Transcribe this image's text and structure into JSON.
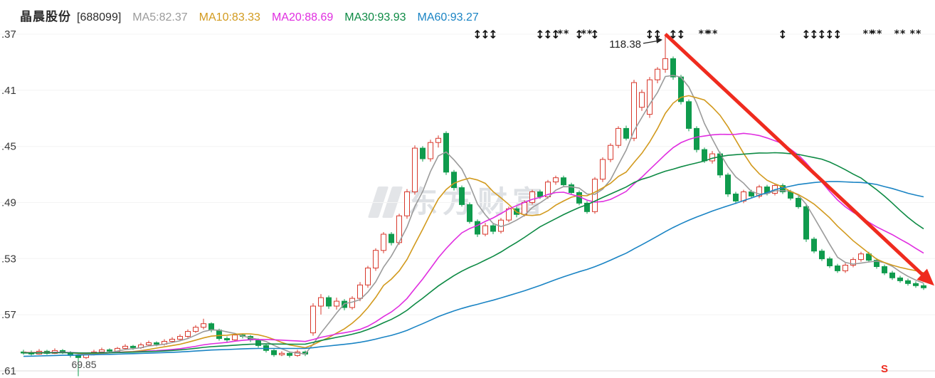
{
  "header": {
    "title": "晶晨股份",
    "code": "[688099]"
  },
  "watermark": {
    "text": "东方财富"
  },
  "chart_data": {
    "type": "candlestick",
    "title": "晶晨股份 [688099] 日K线",
    "symbol": "晶晨股份",
    "stock_code": "688099",
    "ma_lines": [
      {
        "name": "MA5",
        "period": 5,
        "value": 82.37,
        "label": "MA5:82.37",
        "color": "#9b9b9b"
      },
      {
        "name": "MA10",
        "period": 10,
        "value": 83.33,
        "label": "MA10:83.33",
        "color": "#d29a1e"
      },
      {
        "name": "MA20",
        "period": 20,
        "value": 88.69,
        "label": "MA20:88.69",
        "color": "#e02ee0"
      },
      {
        "name": "MA30",
        "period": 30,
        "value": 93.93,
        "label": "MA30:93.93",
        "color": "#0d8a44"
      },
      {
        "name": "MA60",
        "period": 60,
        "value": 93.27,
        "label": "MA60:93.27",
        "color": "#1a84c4"
      }
    ],
    "y_axis": {
      "max": 118.37,
      "min": 70.61,
      "grid": "minimal",
      "ticks": [
        {
          "label": ".37",
          "value": 118.37
        },
        {
          "label": ".41",
          "value": 110.41
        },
        {
          "label": ".45",
          "value": 102.45
        },
        {
          "label": ".49",
          "value": 94.49
        },
        {
          "label": ".53",
          "value": 86.53
        },
        {
          "label": ".57",
          "value": 78.57
        },
        {
          "label": ".61",
          "value": 70.61
        }
      ]
    },
    "colors": {
      "up": "#d8382c",
      "down": "#0f9b4d",
      "trend_arrow": "#ef2b1e",
      "annotation": "#222222"
    },
    "pre_closes": [
      71.2,
      71.3,
      71.25,
      71.4,
      71.5,
      71.45,
      71.6,
      71.7,
      71.65,
      71.8,
      71.9,
      71.85,
      72.0,
      72.1,
      72.05,
      72.2,
      72.3,
      72.25,
      72.4,
      72.5,
      72.45,
      72.6,
      72.55,
      72.7,
      72.65,
      72.8,
      72.75,
      72.9,
      72.85,
      73.0,
      72.95,
      73.05,
      73.0,
      73.1,
      73.05,
      73.15,
      73.1,
      73.2,
      73.1,
      73.0,
      73.1,
      73.2,
      73.15,
      73.05,
      73.0,
      73.1,
      73.2,
      73.25,
      73.2,
      73.1,
      73.15,
      73.2,
      73.25,
      73.3,
      73.25,
      73.2,
      73.25,
      73.3,
      73.25,
      73.2
    ],
    "candles": [
      [
        73.3,
        73.6,
        72.9,
        73.2
      ],
      [
        73.2,
        73.5,
        72.8,
        73.0
      ],
      [
        73.0,
        73.7,
        72.9,
        73.4
      ],
      [
        73.4,
        73.6,
        72.9,
        73.1
      ],
      [
        73.1,
        73.8,
        73.0,
        73.5
      ],
      [
        73.5,
        73.7,
        73.0,
        73.2
      ],
      [
        73.2,
        73.4,
        72.5,
        72.8
      ],
      [
        72.8,
        73.0,
        69.85,
        72.5
      ],
      [
        72.5,
        73.2,
        72.3,
        73.0
      ],
      [
        73.0,
        73.6,
        72.8,
        73.3
      ],
      [
        73.3,
        73.9,
        73.1,
        73.6
      ],
      [
        73.6,
        73.8,
        73.1,
        73.4
      ],
      [
        73.4,
        74.0,
        73.2,
        73.8
      ],
      [
        73.8,
        74.4,
        73.6,
        74.1
      ],
      [
        74.1,
        74.3,
        73.6,
        73.9
      ],
      [
        73.9,
        74.6,
        73.7,
        74.3
      ],
      [
        74.3,
        74.9,
        74.1,
        74.6
      ],
      [
        74.6,
        74.8,
        74.1,
        74.4
      ],
      [
        74.4,
        75.1,
        74.2,
        74.8
      ],
      [
        74.8,
        75.4,
        74.6,
        75.1
      ],
      [
        75.1,
        75.8,
        74.9,
        75.5
      ],
      [
        75.5,
        76.5,
        75.3,
        76.2
      ],
      [
        76.2,
        77.1,
        76.0,
        76.8
      ],
      [
        76.8,
        78.0,
        76.5,
        77.3
      ],
      [
        77.3,
        77.5,
        76.1,
        76.4
      ],
      [
        76.4,
        76.6,
        74.9,
        75.2
      ],
      [
        75.2,
        75.5,
        74.7,
        75.0
      ],
      [
        75.0,
        76.0,
        74.8,
        75.7
      ],
      [
        75.7,
        75.9,
        75.2,
        75.5
      ],
      [
        75.5,
        75.7,
        74.7,
        75.0
      ],
      [
        75.0,
        75.2,
        73.9,
        74.2
      ],
      [
        74.2,
        74.4,
        73.2,
        73.5
      ],
      [
        73.5,
        73.7,
        72.6,
        72.9
      ],
      [
        72.9,
        73.4,
        72.7,
        73.1
      ],
      [
        73.1,
        73.3,
        72.5,
        72.8
      ],
      [
        72.8,
        73.6,
        72.6,
        73.3
      ],
      [
        73.3,
        73.5,
        72.7,
        73.0
      ],
      [
        76.0,
        80.2,
        75.6,
        79.8
      ],
      [
        79.8,
        81.5,
        78.6,
        81.0
      ],
      [
        81.0,
        81.3,
        79.4,
        79.8
      ],
      [
        79.8,
        81.0,
        79.3,
        80.5
      ],
      [
        80.5,
        80.8,
        79.2,
        79.6
      ],
      [
        79.6,
        81.2,
        79.3,
        80.9
      ],
      [
        80.9,
        83.2,
        80.5,
        82.8
      ],
      [
        82.8,
        85.5,
        82.4,
        85.2
      ],
      [
        85.2,
        88.0,
        84.8,
        87.7
      ],
      [
        87.7,
        90.3,
        87.3,
        90.0
      ],
      [
        90.0,
        90.3,
        88.4,
        88.8
      ],
      [
        88.8,
        92.9,
        88.5,
        92.6
      ],
      [
        92.6,
        96.4,
        92.2,
        96.0
      ],
      [
        96.0,
        102.6,
        95.6,
        102.2
      ],
      [
        102.2,
        102.5,
        100.3,
        100.7
      ],
      [
        100.7,
        103.4,
        100.3,
        103.0
      ],
      [
        103.0,
        104.0,
        102.3,
        103.6
      ],
      [
        104.3,
        104.6,
        98.4,
        98.8
      ],
      [
        98.8,
        99.1,
        96.2,
        96.6
      ],
      [
        96.6,
        96.9,
        93.9,
        94.2
      ],
      [
        94.2,
        94.5,
        91.5,
        91.8
      ],
      [
        91.8,
        92.1,
        89.6,
        90.0
      ],
      [
        90.0,
        91.6,
        89.7,
        91.2
      ],
      [
        91.2,
        91.5,
        90.0,
        90.4
      ],
      [
        90.4,
        92.3,
        90.1,
        92.0
      ],
      [
        92.0,
        93.9,
        91.7,
        93.6
      ],
      [
        93.6,
        93.9,
        92.4,
        92.8
      ],
      [
        92.8,
        94.8,
        92.5,
        94.5
      ],
      [
        94.5,
        96.3,
        94.2,
        96.0
      ],
      [
        96.0,
        96.3,
        95.0,
        95.3
      ],
      [
        95.3,
        97.7,
        95.0,
        97.4
      ],
      [
        97.4,
        98.3,
        97.0,
        98.0
      ],
      [
        98.0,
        98.3,
        96.7,
        97.0
      ],
      [
        97.0,
        97.3,
        95.6,
        95.9
      ],
      [
        95.9,
        96.2,
        94.1,
        94.4
      ],
      [
        94.4,
        94.7,
        92.9,
        93.2
      ],
      [
        93.2,
        98.1,
        92.9,
        97.8
      ],
      [
        97.8,
        100.9,
        97.4,
        100.6
      ],
      [
        100.6,
        102.9,
        100.2,
        102.6
      ],
      [
        102.6,
        105.3,
        102.2,
        105.0
      ],
      [
        105.0,
        105.4,
        103.3,
        103.6
      ],
      [
        103.6,
        111.9,
        103.2,
        111.5
      ],
      [
        108.0,
        110.5,
        107.5,
        110.1
      ],
      [
        107.0,
        112.3,
        106.5,
        111.9
      ],
      [
        111.9,
        113.7,
        111.4,
        113.4
      ],
      [
        113.4,
        118.38,
        112.9,
        114.9
      ],
      [
        114.9,
        115.2,
        111.9,
        112.3
      ],
      [
        112.3,
        112.6,
        108.4,
        108.8
      ],
      [
        108.8,
        109.1,
        104.6,
        105.0
      ],
      [
        105.0,
        105.3,
        101.6,
        102.0
      ],
      [
        102.0,
        102.3,
        100.1,
        100.4
      ],
      [
        100.4,
        101.8,
        100.0,
        101.4
      ],
      [
        101.4,
        101.7,
        98.0,
        98.4
      ],
      [
        98.4,
        98.7,
        95.3,
        95.7
      ],
      [
        95.7,
        96.0,
        94.3,
        94.7
      ],
      [
        94.7,
        96.3,
        94.4,
        96.0
      ],
      [
        96.0,
        96.3,
        95.1,
        95.4
      ],
      [
        95.4,
        97.0,
        95.1,
        96.7
      ],
      [
        96.7,
        97.0,
        95.5,
        95.8
      ],
      [
        95.8,
        97.2,
        95.5,
        96.9
      ],
      [
        96.9,
        97.2,
        95.7,
        96.0
      ],
      [
        96.0,
        96.3,
        94.8,
        95.1
      ],
      [
        95.1,
        95.4,
        93.6,
        93.9
      ],
      [
        93.9,
        94.2,
        88.9,
        89.3
      ],
      [
        89.3,
        89.6,
        87.3,
        87.6
      ],
      [
        87.6,
        87.9,
        86.2,
        86.5
      ],
      [
        86.5,
        86.8,
        85.2,
        85.5
      ],
      [
        85.5,
        85.8,
        84.5,
        84.8
      ],
      [
        84.8,
        85.9,
        84.5,
        85.6
      ],
      [
        85.6,
        86.7,
        85.3,
        86.4
      ],
      [
        86.4,
        87.5,
        86.1,
        87.2
      ],
      [
        87.2,
        87.5,
        86.0,
        86.3
      ],
      [
        86.3,
        86.6,
        85.1,
        85.4
      ],
      [
        85.4,
        85.7,
        84.2,
        84.5
      ],
      [
        84.5,
        84.8,
        83.5,
        83.8
      ],
      [
        83.8,
        84.1,
        83.1,
        83.4
      ],
      [
        83.4,
        83.7,
        82.7,
        83.0
      ],
      [
        83.0,
        83.3,
        82.4,
        82.7
      ],
      [
        82.7,
        83.0,
        82.1,
        82.4
      ]
    ],
    "event_markers": [
      {
        "i": 58,
        "t": "a"
      },
      {
        "i": 59,
        "t": "a"
      },
      {
        "i": 60,
        "t": "a"
      },
      {
        "i": 66,
        "t": "a"
      },
      {
        "i": 67,
        "t": "a"
      },
      {
        "i": 68,
        "t": "a"
      },
      {
        "i": 69,
        "t": "s"
      },
      {
        "i": 71,
        "t": "a"
      },
      {
        "i": 72,
        "t": "s"
      },
      {
        "i": 73,
        "t": "a"
      },
      {
        "i": 80,
        "t": "a"
      },
      {
        "i": 81,
        "t": "a"
      },
      {
        "i": 83,
        "t": "a"
      },
      {
        "i": 84,
        "t": "a"
      },
      {
        "i": 87,
        "t": "s"
      },
      {
        "i": 88,
        "t": "s"
      },
      {
        "i": 97,
        "t": "a"
      },
      {
        "i": 100,
        "t": "a"
      },
      {
        "i": 101,
        "t": "a"
      },
      {
        "i": 102,
        "t": "a"
      },
      {
        "i": 103,
        "t": "a"
      },
      {
        "i": 104,
        "t": "a"
      },
      {
        "i": 108,
        "t": "s"
      },
      {
        "i": 109,
        "t": "s"
      },
      {
        "i": 112,
        "t": "s"
      },
      {
        "i": 114,
        "t": "s"
      }
    ],
    "peak_annotation": {
      "text": "118.38",
      "i": 82,
      "value": 118.38
    },
    "low_annotation": {
      "text": "69.85",
      "i": 7,
      "value": 69.85
    },
    "trend_arrow": {
      "from_i": 82,
      "from_value": 118.38,
      "to_i": 115.3,
      "to_value": 83.8,
      "color": "#ef2b1e"
    },
    "sell_signal": {
      "label": "S",
      "i": 110,
      "color": "#ef2b1e"
    }
  }
}
